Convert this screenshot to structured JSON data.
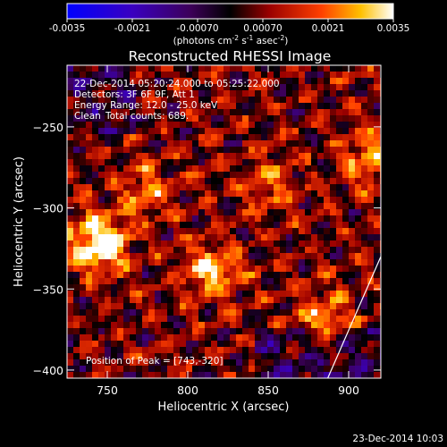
{
  "chart_data": {
    "type": "heatmap",
    "title": "Reconstructed RHESSI Image",
    "xlabel": "Heliocentric X (arcsec)",
    "ylabel": "Heliocentric Y (arcsec)",
    "xlim": [
      725,
      920
    ],
    "ylim": [
      -405,
      -212
    ],
    "x_ticks": [
      750,
      800,
      850,
      900
    ],
    "y_ticks": [
      -250,
      -300,
      -350,
      -400
    ],
    "colorbar": {
      "range": [
        -0.0035,
        0.0035
      ],
      "tick_labels": [
        "-0.0035",
        "-0.0021",
        "-0.00070",
        "0.00070",
        "0.0021",
        "0.0035"
      ],
      "unit_main": "(photons cm",
      "unit_exp1": "-2",
      "unit_mid": " s",
      "unit_exp2": "-1",
      "unit_end": " asec",
      "unit_exp3": "-2",
      "unit_close": ")"
    },
    "annotations": {
      "time_range": "22-Dec-2014 05:20:24.000 to 05:25:22.000",
      "detectors": "Detectors: 3F 6F 9F, Att 1",
      "energy_range": "Energy Range: 12.0 - 25.0 keV",
      "clean_label": "Clean",
      "total_counts": "Total counts: 689.",
      "peak_position": "Position of Peak = [743,-320]"
    },
    "limb_line": [
      [
        887,
        -405
      ],
      [
        920,
        -330
      ]
    ],
    "peak": {
      "x": 743,
      "y": -320
    }
  },
  "footer": {
    "timestamp": "23-Dec-2014 10:03"
  }
}
